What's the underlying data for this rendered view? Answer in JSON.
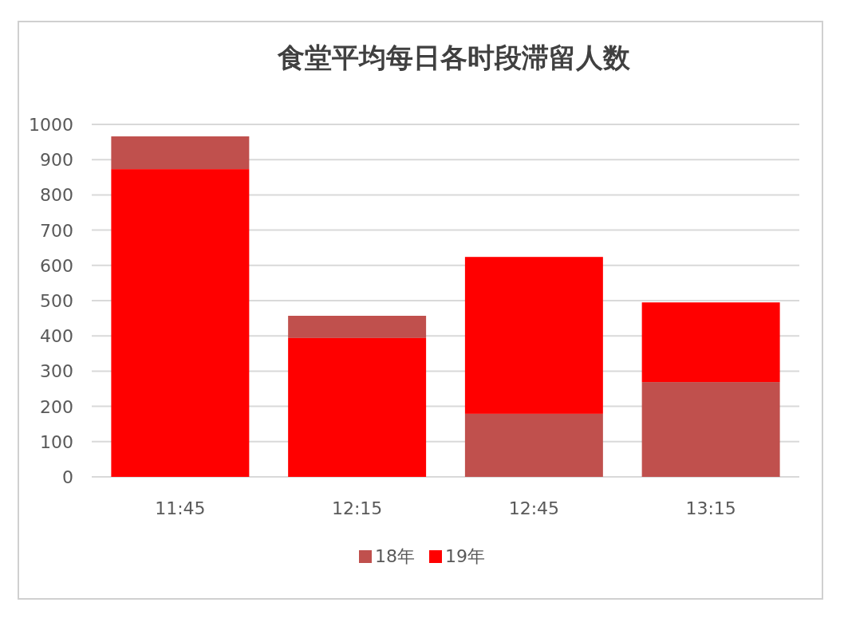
{
  "chart_data": {
    "type": "bar",
    "title": "食堂平均每日各时段滞留人数",
    "categories": [
      "11:45",
      "12:15",
      "12:45",
      "13:15"
    ],
    "series": [
      {
        "name": "18年",
        "color": "#c0504d",
        "values": [
          93,
          63,
          179,
          269
        ],
        "base": [
          873,
          394,
          0,
          0
        ]
      },
      {
        "name": "19年",
        "color": "#ff0000",
        "values": [
          873,
          394,
          445,
          226
        ],
        "base": [
          0,
          0,
          179,
          269
        ]
      }
    ],
    "ylim": [
      0,
      1000
    ],
    "yticks": [
      0,
      100,
      200,
      300,
      400,
      500,
      600,
      700,
      800,
      900,
      1000
    ],
    "grid": "y",
    "legend": "bottom"
  }
}
